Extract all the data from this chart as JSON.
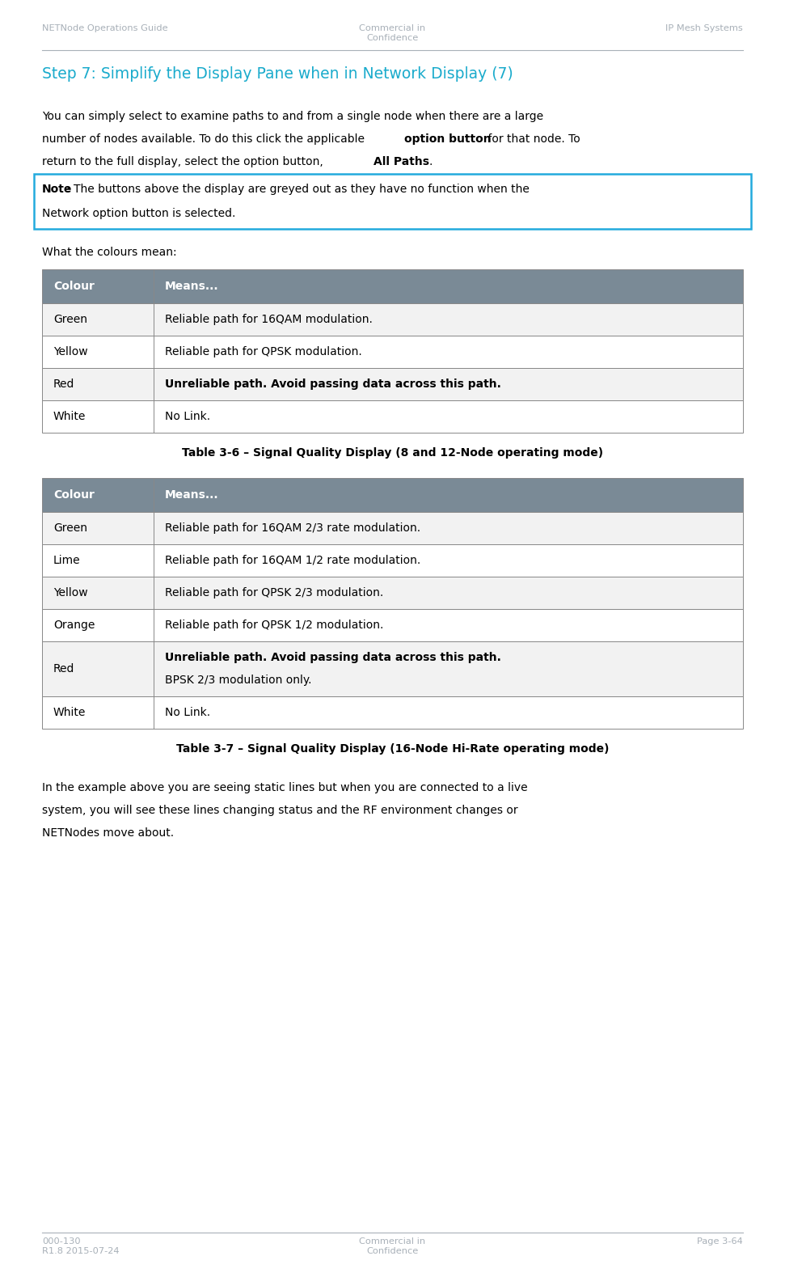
{
  "header_left": "NETNode Operations Guide",
  "header_center": "Commercial in\nConfidence",
  "header_right": "IP Mesh Systems",
  "footer_left": "000-130\nR1.8 2015-07-24",
  "footer_center": "Commercial in\nConfidence",
  "footer_right": "Page 3-64",
  "header_text_color": "#a8b0b8",
  "divider_color": "#a8b0b8",
  "section_title": "Step 7: Simplify the Display Pane when in Network Display (7)",
  "section_title_color": "#1aabcc",
  "note_bold": "Note",
  "note_text_rest": ": The buttons above the display are greyed out as they have no function when the\nNetwork option button is selected.",
  "note_border_color": "#22aadd",
  "what_colours_text": "What the colours mean:",
  "table1_title": "Table 3-6 – Signal Quality Display (8 and 12-Node operating mode)",
  "table2_title": "Table 3-7 – Signal Quality Display (16-Node Hi-Rate operating mode)",
  "table_header_bg": "#7a8a96",
  "table_row_bg_odd": "#f2f2f2",
  "table_row_bg_even": "#ffffff",
  "table_border_color": "#888888",
  "table1_rows": [
    {
      "col": "Green",
      "text": "Reliable path for 16QAM modulation.",
      "bold": false
    },
    {
      "col": "Yellow",
      "text": "Reliable path for QPSK modulation.",
      "bold": false
    },
    {
      "col": "Red",
      "text": "Unreliable path. Avoid passing data across this path.",
      "bold": true
    },
    {
      "col": "White",
      "text": "No Link.",
      "bold": false
    }
  ],
  "table2_rows": [
    {
      "col": "Green",
      "text": "Reliable path for 16QAM 2/3 rate modulation.",
      "bold": false
    },
    {
      "col": "Lime",
      "text": "Reliable path for 16QAM 1/2 rate modulation.",
      "bold": false
    },
    {
      "col": "Yellow",
      "text": "Reliable path for QPSK 2/3 modulation.",
      "bold": false
    },
    {
      "col": "Orange",
      "text": "Reliable path for QPSK 1/2 modulation.",
      "bold": false
    },
    {
      "col": "Red",
      "text": "Unreliable path. Avoid passing data across this path.",
      "text2": "BPSK 2/3 modulation only.",
      "bold": true
    },
    {
      "col": "White",
      "text": "No Link.",
      "bold": false
    }
  ],
  "closing_text": "In the example above you are seeing static lines but when you are connected to a live\nsystem, you will see these lines changing status and the RF environment changes or\nNETNodes move about.",
  "bg_color": "#ffffff"
}
